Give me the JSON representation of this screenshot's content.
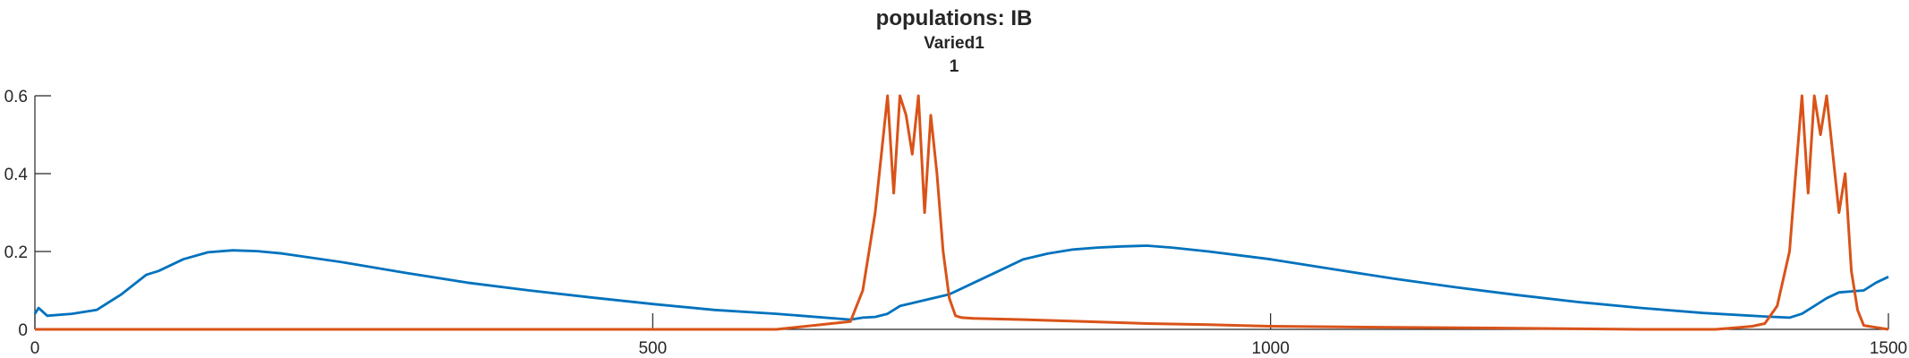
{
  "chart_data": {
    "type": "line",
    "title": [
      "populations: IB",
      "Varied1",
      "1"
    ],
    "xlabel": "",
    "ylabel": "",
    "xlim": [
      0,
      1500
    ],
    "ylim": [
      0,
      0.6
    ],
    "xticks": [
      0,
      500,
      1000,
      1500
    ],
    "yticks": [
      0,
      0.2,
      0.4,
      0.6
    ],
    "xtick_labels": [
      "0",
      "500",
      "1000",
      "1500"
    ],
    "ytick_labels": [
      "0",
      "0.2",
      "0.4",
      "0.6"
    ],
    "grid": false,
    "legend": "none",
    "series": [
      {
        "color": "#0072BD",
        "x": [
          0,
          3,
          10,
          30,
          50,
          70,
          90,
          100,
          120,
          140,
          160,
          180,
          200,
          250,
          300,
          350,
          400,
          450,
          500,
          550,
          600,
          660,
          670,
          680,
          690,
          700,
          720,
          740,
          760,
          780,
          800,
          820,
          840,
          860,
          880,
          900,
          920,
          950,
          1000,
          1050,
          1100,
          1150,
          1200,
          1250,
          1300,
          1350,
          1400,
          1420,
          1430,
          1440,
          1450,
          1460,
          1480,
          1490,
          1500
        ],
        "y": [
          0.04,
          0.055,
          0.035,
          0.04,
          0.05,
          0.09,
          0.14,
          0.15,
          0.18,
          0.198,
          0.203,
          0.201,
          0.195,
          0.172,
          0.145,
          0.12,
          0.1,
          0.082,
          0.065,
          0.05,
          0.04,
          0.025,
          0.03,
          0.032,
          0.04,
          0.06,
          0.075,
          0.09,
          0.12,
          0.15,
          0.18,
          0.195,
          0.205,
          0.21,
          0.213,
          0.215,
          0.21,
          0.2,
          0.18,
          0.155,
          0.13,
          0.108,
          0.088,
          0.07,
          0.055,
          0.042,
          0.033,
          0.03,
          0.04,
          0.06,
          0.08,
          0.095,
          0.1,
          0.12,
          0.135
        ]
      },
      {
        "color": "#D95319",
        "x": [
          0,
          600,
          660,
          670,
          675,
          680,
          685,
          690,
          695,
          700,
          705,
          710,
          715,
          720,
          725,
          730,
          735,
          740,
          745,
          750,
          760,
          800,
          850,
          900,
          950,
          1000,
          1100,
          1200,
          1300,
          1360,
          1380,
          1390,
          1400,
          1410,
          1420,
          1425,
          1430,
          1435,
          1440,
          1445,
          1450,
          1455,
          1460,
          1465,
          1470,
          1475,
          1480,
          1490,
          1500
        ],
        "y": [
          0.0,
          0.0,
          0.02,
          0.1,
          0.2,
          0.3,
          0.45,
          0.6,
          0.35,
          0.6,
          0.55,
          0.45,
          0.6,
          0.3,
          0.55,
          0.4,
          0.2,
          0.08,
          0.035,
          0.03,
          0.028,
          0.025,
          0.02,
          0.015,
          0.012,
          0.008,
          0.005,
          0.003,
          0.0,
          0.0,
          0.005,
          0.008,
          0.015,
          0.06,
          0.2,
          0.4,
          0.6,
          0.35,
          0.6,
          0.5,
          0.6,
          0.45,
          0.3,
          0.4,
          0.15,
          0.05,
          0.01,
          0.005,
          0.0
        ]
      }
    ]
  }
}
